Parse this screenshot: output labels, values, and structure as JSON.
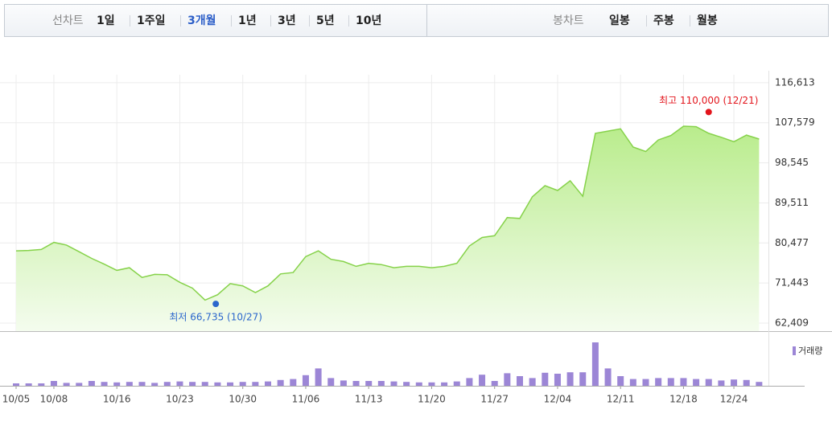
{
  "tabs": {
    "line_chart": {
      "label": "선차트",
      "items": [
        "1일",
        "1주일",
        "3개월",
        "1년",
        "3년",
        "5년",
        "10년"
      ],
      "selected": 2
    },
    "candle_chart": {
      "label": "봉차트",
      "items": [
        "일봉",
        "주봉",
        "월봉"
      ]
    }
  },
  "chart_data": {
    "type": "line",
    "categories": [
      "10/05",
      null,
      null,
      "10/08",
      null,
      null,
      null,
      null,
      "10/16",
      null,
      null,
      null,
      null,
      "10/23",
      null,
      null,
      null,
      null,
      "10/30",
      null,
      null,
      null,
      null,
      "11/06",
      null,
      null,
      null,
      null,
      "11/13",
      null,
      null,
      null,
      null,
      "11/20",
      null,
      null,
      null,
      null,
      "11/27",
      null,
      null,
      null,
      null,
      "12/04",
      null,
      null,
      null,
      null,
      "12/11",
      null,
      null,
      null,
      null,
      "12/18",
      null,
      null,
      null,
      "12/24",
      null,
      null
    ],
    "series": [
      {
        "color": "#86d24a",
        "values": [
          78700,
          78800,
          79000,
          80600,
          80000,
          78500,
          77000,
          75700,
          74300,
          74900,
          72700,
          73400,
          73300,
          71600,
          70300,
          67600,
          68800,
          71300,
          70800,
          69300,
          70800,
          73500,
          73800,
          77400,
          78700,
          76800,
          76300,
          75200,
          75900,
          75600,
          74900,
          75200,
          75200,
          74900,
          75200,
          75900,
          79800,
          81700,
          82100,
          86200,
          86000,
          90900,
          93400,
          92300,
          94500,
          91000,
          105200,
          105700,
          106200,
          102100,
          101100,
          103700,
          104700,
          106800,
          106700,
          105200,
          104300,
          103300,
          104800,
          103900
        ]
      },
      {
        "name": "거래량",
        "type": "bar",
        "axis": "y2",
        "color": "#9c86d6",
        "values": [
          5,
          5,
          5,
          10,
          6,
          6,
          10,
          8,
          7,
          8,
          8,
          6,
          8,
          9,
          8,
          8,
          7,
          7,
          8,
          8,
          9,
          12,
          14,
          22,
          36,
          16,
          11,
          10,
          10,
          10,
          9,
          8,
          7,
          7,
          7,
          9,
          16,
          23,
          10,
          26,
          20,
          16,
          27,
          25,
          28,
          28,
          90,
          36,
          20,
          14,
          14,
          16,
          16,
          16,
          14,
          14,
          11,
          13,
          12,
          8
        ]
      }
    ],
    "ylim": [
      60600,
      118400
    ],
    "yticks": [
      {
        "value": 116613,
        "label": "116,613"
      },
      {
        "value": 107579,
        "label": "107,579"
      },
      {
        "value": 98545,
        "label": "98,545"
      },
      {
        "value": 89511,
        "label": "89,511"
      },
      {
        "value": 80477,
        "label": "80,477"
      },
      {
        "value": 71443,
        "label": "71,443"
      },
      {
        "value": 62409,
        "label": "62,409"
      }
    ],
    "y2lim": [
      0,
      100
    ],
    "grid": true,
    "annotations": [
      {
        "text": "최고 110,000 (12/21)",
        "value": 110000,
        "date": "12/21",
        "color": "#e3151c"
      },
      {
        "text": "최저 66,735 (10/27)",
        "value": 66735,
        "date": "10/27",
        "color": "#2a66cc"
      }
    ]
  }
}
